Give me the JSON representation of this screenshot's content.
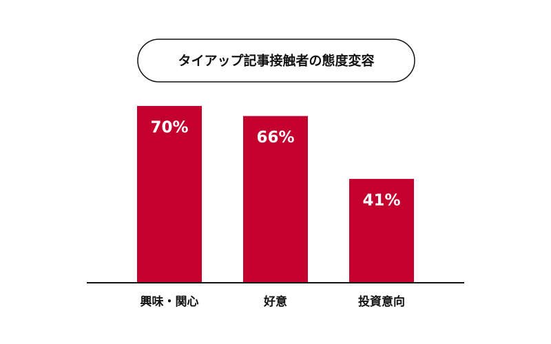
{
  "chart_data": {
    "type": "bar",
    "title": "タイアップ記事接触者の態度変容",
    "categories": [
      "興味・関心",
      "好意",
      "投資意向"
    ],
    "values": [
      70,
      66,
      41
    ],
    "value_labels": [
      "70%",
      "66%",
      "41%"
    ],
    "color": "#c4002f"
  }
}
